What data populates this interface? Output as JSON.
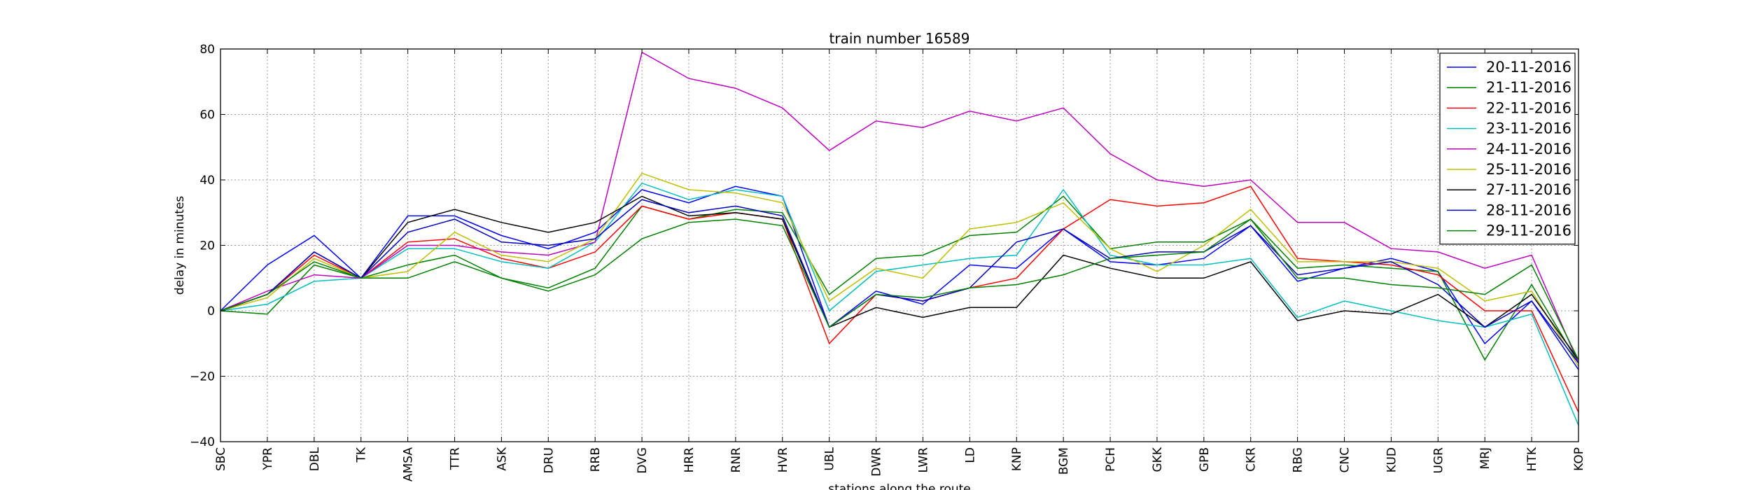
{
  "chart_data": {
    "type": "line",
    "title": "train number 16589",
    "xlabel": "stations along the route",
    "ylabel": "delay in minutes",
    "ylim": [
      -40,
      80
    ],
    "yticks": [
      -40,
      -20,
      0,
      20,
      40,
      60,
      80
    ],
    "ytick_labels": [
      "−40",
      "−20",
      "0",
      "20",
      "40",
      "60",
      "80"
    ],
    "grid": true,
    "grid_style": "dotted",
    "legend_position": "top-right",
    "categories": [
      "SBC",
      "YPR",
      "DBL",
      "TK",
      "AMSA",
      "TTR",
      "ASK",
      "DRU",
      "RRB",
      "DVG",
      "HRR",
      "RNR",
      "HVR",
      "UBL",
      "DWR",
      "LWR",
      "LD",
      "KNP",
      "BGM",
      "PCH",
      "GKK",
      "GPB",
      "CKR",
      "RBG",
      "CNC",
      "KUD",
      "UGR",
      "MRJ",
      "HTK",
      "KOP"
    ],
    "series": [
      {
        "name": "20-11-2016",
        "color": "#0000ff",
        "values": [
          0,
          14,
          23,
          10,
          29,
          29,
          23,
          19,
          24,
          37,
          33,
          38,
          35,
          -5,
          6,
          2,
          14,
          13,
          25,
          15,
          14,
          16,
          26,
          9,
          13,
          16,
          12,
          -10,
          3,
          -18
        ]
      },
      {
        "name": "21-11-2016",
        "color": "#008000",
        "values": [
          0,
          -1,
          14,
          10,
          14,
          17,
          10,
          7,
          13,
          32,
          28,
          31,
          30,
          5,
          16,
          17,
          23,
          24,
          35,
          19,
          21,
          21,
          28,
          13,
          14,
          13,
          12,
          -15,
          8,
          -16
        ]
      },
      {
        "name": "22-11-2016",
        "color": "#ff0000",
        "values": [
          0,
          5,
          17,
          10,
          21,
          22,
          16,
          13,
          18,
          32,
          28,
          30,
          28,
          -10,
          5,
          3,
          7,
          10,
          25,
          34,
          32,
          33,
          38,
          16,
          15,
          14,
          11,
          0,
          0,
          -31
        ]
      },
      {
        "name": "23-11-2016",
        "color": "#00bfbf",
        "values": [
          0,
          2,
          9,
          10,
          19,
          19,
          15,
          13,
          21,
          39,
          34,
          37,
          35,
          0,
          12,
          14,
          16,
          17,
          37,
          17,
          14,
          14,
          16,
          -2,
          3,
          0,
          -3,
          -5,
          -1,
          -35
        ]
      },
      {
        "name": "24-11-2016",
        "color": "#bf00bf",
        "values": [
          0,
          6,
          11,
          10,
          20,
          20,
          18,
          17,
          21,
          79,
          71,
          68,
          62,
          49,
          58,
          56,
          61,
          58,
          62,
          48,
          40,
          38,
          40,
          27,
          27,
          19,
          18,
          13,
          17,
          -16
        ]
      },
      {
        "name": "25-11-2016",
        "color": "#bfbf00",
        "values": [
          0,
          4,
          16,
          10,
          12,
          24,
          17,
          15,
          22,
          42,
          37,
          36,
          33,
          3,
          13,
          10,
          25,
          27,
          33,
          19,
          12,
          20,
          31,
          15,
          15,
          15,
          13,
          3,
          6,
          -17
        ]
      },
      {
        "name": "27-11-2016",
        "color": "#000000",
        "values": [
          0,
          5,
          18,
          10,
          27,
          31,
          27,
          24,
          27,
          35,
          29,
          30,
          28,
          -5,
          1,
          -2,
          1,
          1,
          17,
          13,
          10,
          10,
          15,
          -3,
          0,
          -1,
          5,
          -5,
          5,
          -15
        ]
      },
      {
        "name": "28-11-2016",
        "color": "#0000bf",
        "values": [
          0,
          5,
          18,
          10,
          24,
          28,
          21,
          20,
          22,
          34,
          30,
          32,
          29,
          -5,
          5,
          3,
          7,
          21,
          25,
          16,
          18,
          18,
          26,
          11,
          13,
          15,
          8,
          -5,
          3,
          -16
        ]
      },
      {
        "name": "29-11-2016",
        "color": "#007f00",
        "values": [
          0,
          5,
          15,
          10,
          10,
          15,
          10,
          6,
          11,
          22,
          27,
          28,
          26,
          -5,
          5,
          4,
          7,
          8,
          11,
          16,
          17,
          18,
          28,
          10,
          10,
          8,
          7,
          5,
          14,
          -15
        ]
      }
    ]
  }
}
